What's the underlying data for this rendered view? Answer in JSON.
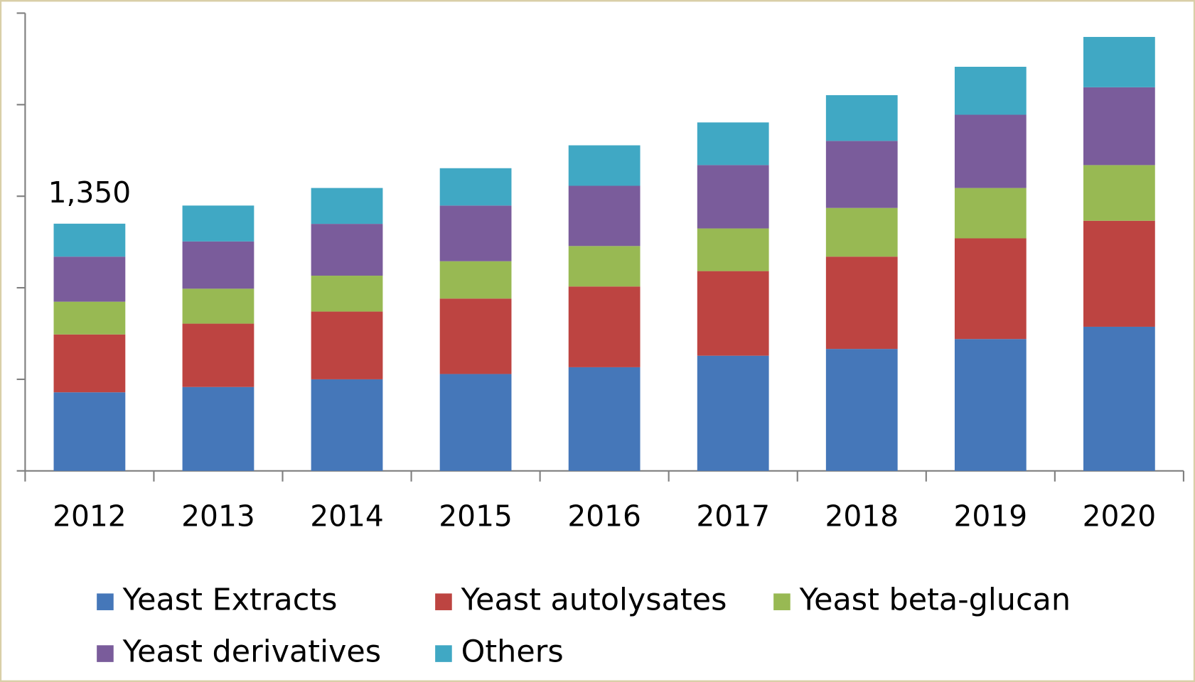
{
  "chart_data": {
    "type": "bar",
    "stacked": true,
    "categories": [
      "2012",
      "2013",
      "2014",
      "2015",
      "2016",
      "2017",
      "2018",
      "2019",
      "2020"
    ],
    "series": [
      {
        "name": "Yeast Extracts",
        "color": "#4577b9",
        "values": [
          429,
          458,
          500,
          529,
          566,
          629,
          666,
          720,
          787
        ]
      },
      {
        "name": "Yeast autolysates",
        "color": "#bd4441",
        "values": [
          316,
          346,
          370,
          412,
          441,
          462,
          504,
          550,
          579
        ]
      },
      {
        "name": "Yeast beta-glucan",
        "color": "#98b953",
        "values": [
          179,
          191,
          196,
          204,
          221,
          233,
          266,
          275,
          304
        ]
      },
      {
        "name": "Yeast derivatives",
        "color": "#7a5c9b",
        "values": [
          246,
          258,
          283,
          304,
          329,
          346,
          366,
          400,
          425
        ]
      },
      {
        "name": "Others",
        "color": "#40a8c4",
        "values": [
          180,
          196,
          196,
          204,
          221,
          233,
          250,
          262,
          275
        ]
      }
    ],
    "annotations": [
      {
        "label": "1,350",
        "value": 1350
      }
    ],
    "ylim": [
      0,
      2500
    ],
    "yticks": [
      0,
      500,
      1000,
      1500,
      2000,
      2500
    ],
    "grid": false,
    "legend": "bottom"
  }
}
